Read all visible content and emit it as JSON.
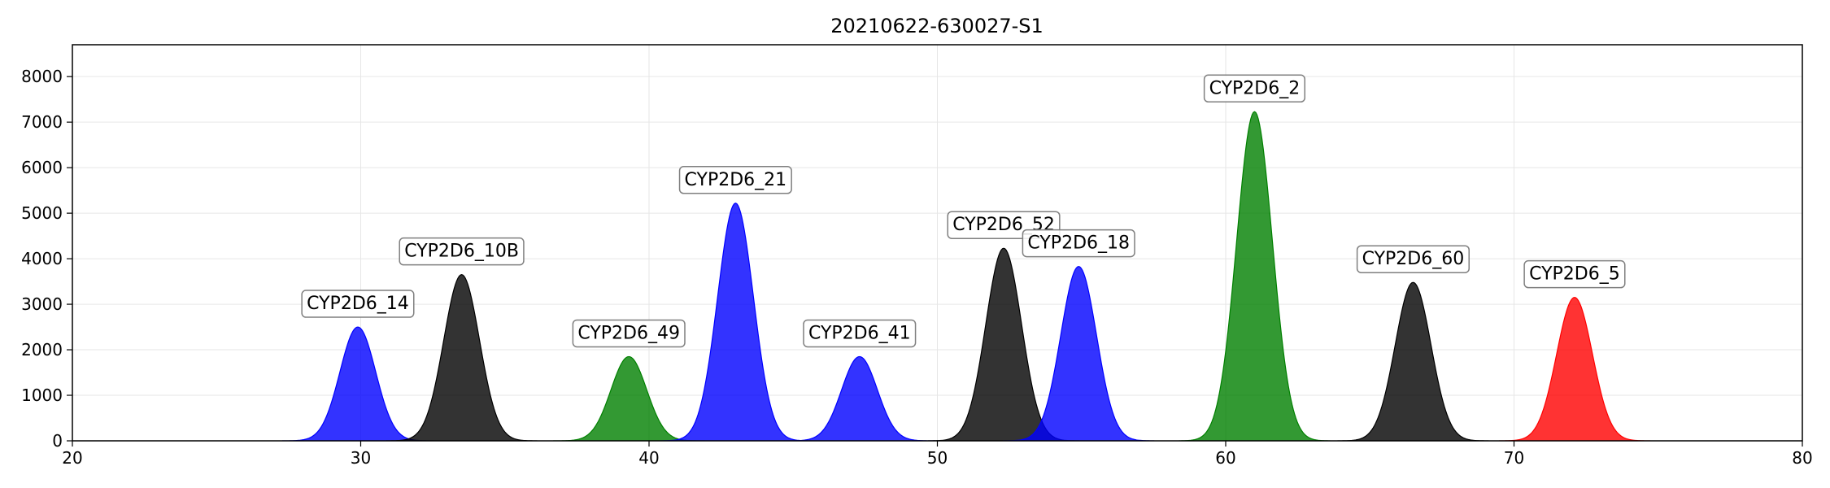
{
  "chart_data": {
    "type": "area",
    "title": "20210622-630027-S1",
    "xlabel": "",
    "ylabel": "",
    "xlim": [
      20,
      80
    ],
    "ylim": [
      0,
      8700
    ],
    "x_ticks": [
      20,
      30,
      40,
      50,
      60,
      70,
      80
    ],
    "y_ticks": [
      0,
      1000,
      2000,
      3000,
      4000,
      5000,
      6000,
      7000,
      8000
    ],
    "grid": true,
    "legend": "none",
    "peaks": [
      {
        "label": "CYP2D6_14",
        "center": 29.9,
        "height": 2500,
        "sigma": 0.62,
        "color": "#0000ff"
      },
      {
        "label": "CYP2D6_10B",
        "center": 33.5,
        "height": 3650,
        "sigma": 0.62,
        "color": "#000000"
      },
      {
        "label": "CYP2D6_49",
        "center": 39.3,
        "height": 1850,
        "sigma": 0.62,
        "color": "#008000"
      },
      {
        "label": "CYP2D6_21",
        "center": 43.0,
        "height": 5220,
        "sigma": 0.62,
        "color": "#0000ff"
      },
      {
        "label": "CYP2D6_41",
        "center": 47.3,
        "height": 1850,
        "sigma": 0.62,
        "color": "#0000ff"
      },
      {
        "label": "CYP2D6_52",
        "center": 52.3,
        "height": 4230,
        "sigma": 0.62,
        "color": "#000000"
      },
      {
        "label": "CYP2D6_18",
        "center": 54.9,
        "height": 3830,
        "sigma": 0.62,
        "color": "#0000ff"
      },
      {
        "label": "CYP2D6_2",
        "center": 61.0,
        "height": 7230,
        "sigma": 0.62,
        "color": "#008000"
      },
      {
        "label": "CYP2D6_60",
        "center": 66.5,
        "height": 3480,
        "sigma": 0.62,
        "color": "#000000"
      },
      {
        "label": "CYP2D6_5",
        "center": 72.1,
        "height": 3150,
        "sigma": 0.62,
        "color": "#ff0000"
      }
    ]
  }
}
